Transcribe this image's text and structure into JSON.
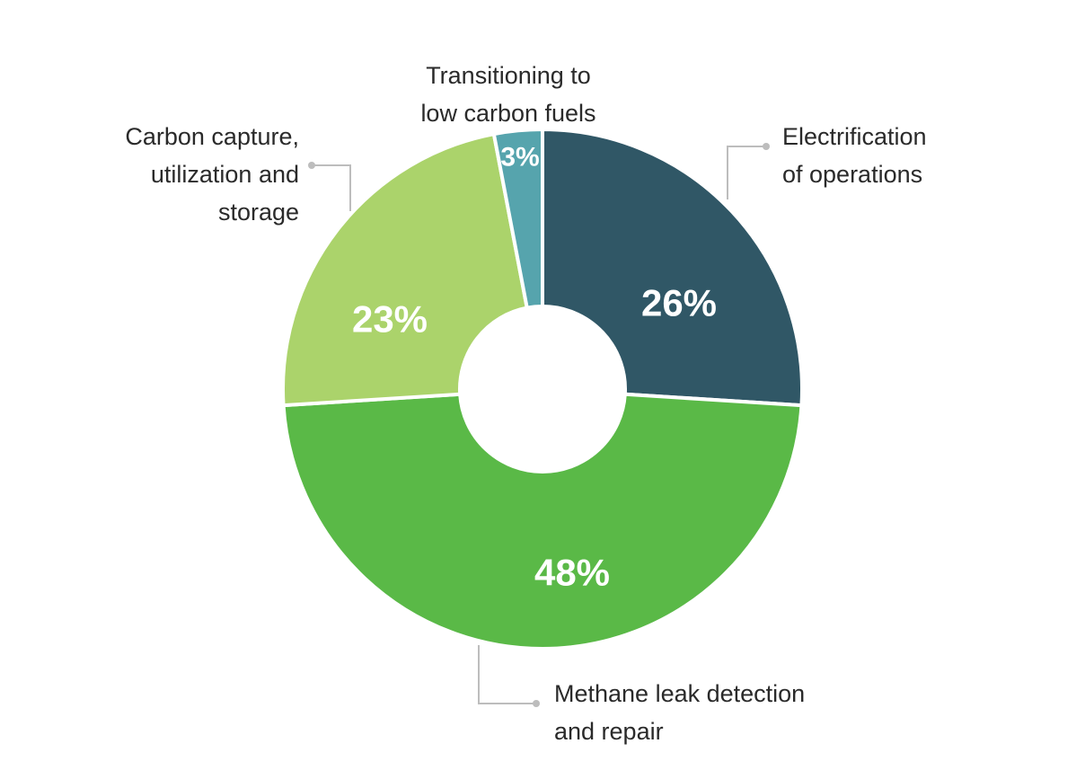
{
  "chart_data": {
    "type": "pie",
    "donut": true,
    "title": "",
    "categories": [
      "Electrification of operations",
      "Methane leak detection and repair",
      "Carbon capture, utilization and storage",
      "Transitioning to low carbon fuels"
    ],
    "values": [
      26,
      48,
      23,
      3
    ],
    "value_labels": [
      "26%",
      "48%",
      "23%",
      "3%"
    ],
    "label_lines": [
      [
        "Electrification",
        "of operations"
      ],
      [
        "Methane leak detection",
        "and repair"
      ],
      [
        "Carbon capture,",
        "utilization and",
        "storage"
      ],
      [
        "Transitioning to",
        "low carbon fuels"
      ]
    ],
    "colors": [
      "#305766",
      "#5ab947",
      "#abd36b",
      "#56a4ad"
    ],
    "legend": "none"
  }
}
